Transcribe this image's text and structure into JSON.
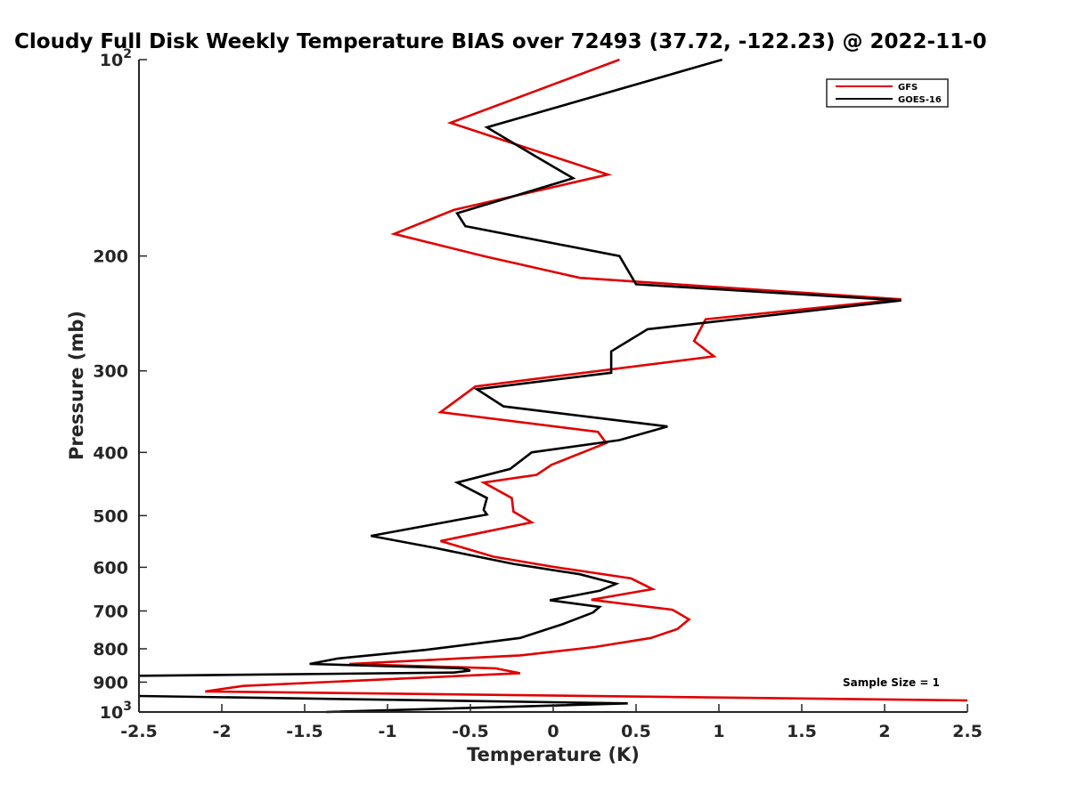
{
  "chart_data": {
    "type": "line",
    "title": "Cloudy Full Disk Weekly Temperature BIAS over 72493 (37.72, -122.23) @ 2022-11-0",
    "xlabel": "Temperature (K)",
    "ylabel": "Pressure (mb)",
    "xlim": [
      -2.5,
      2.5
    ],
    "ylim": [
      100,
      1000
    ],
    "y_scale": "log",
    "y_reversed": true,
    "x_ticks": [
      "-2.5",
      "-2",
      "-1.5",
      "-1",
      "-0.5",
      "0",
      "0.5",
      "1",
      "1.5",
      "2",
      "2.5"
    ],
    "y_ticks": [
      {
        "value": 100,
        "base": "10",
        "exp": "2"
      },
      {
        "value": 200,
        "label": "200"
      },
      {
        "value": 300,
        "label": "300"
      },
      {
        "value": 400,
        "label": "400"
      },
      {
        "value": 500,
        "label": "500"
      },
      {
        "value": 600,
        "label": "600"
      },
      {
        "value": 700,
        "label": "700"
      },
      {
        "value": 800,
        "label": "800"
      },
      {
        "value": 900,
        "label": "900"
      },
      {
        "value": 1000,
        "base": "10",
        "exp": "3"
      }
    ],
    "grid": false,
    "legend_position": "top-right",
    "annotation": "Sample Size = 1",
    "series": [
      {
        "name": "GFS",
        "color": "#e00000",
        "points": [
          [
            0.4,
            100
          ],
          [
            -0.62,
            125
          ],
          [
            0.33,
            150
          ],
          [
            -0.6,
            170
          ],
          [
            -0.96,
            185
          ],
          [
            -0.42,
            200
          ],
          [
            0.16,
            216
          ],
          [
            2.1,
            233
          ],
          [
            0.92,
            250
          ],
          [
            0.85,
            270
          ],
          [
            0.97,
            285
          ],
          [
            -0.47,
            317
          ],
          [
            -0.68,
            347
          ],
          [
            0.27,
            372
          ],
          [
            0.32,
            387
          ],
          [
            -0.01,
            418
          ],
          [
            -0.1,
            433
          ],
          [
            -0.42,
            445
          ],
          [
            -0.25,
            470
          ],
          [
            -0.24,
            493
          ],
          [
            -0.13,
            512
          ],
          [
            -0.68,
            547
          ],
          [
            -0.36,
            578
          ],
          [
            0.0,
            599
          ],
          [
            0.47,
            624
          ],
          [
            0.6,
            648
          ],
          [
            0.23,
            673
          ],
          [
            0.72,
            697
          ],
          [
            0.82,
            721
          ],
          [
            0.75,
            746
          ],
          [
            0.59,
            770
          ],
          [
            0.25,
            795
          ],
          [
            -0.2,
            819
          ],
          [
            -1.23,
            844
          ],
          [
            -0.35,
            857
          ],
          [
            -0.2,
            872
          ],
          [
            -0.97,
            890
          ],
          [
            -1.87,
            912
          ],
          [
            -2.1,
            930
          ],
          [
            2.5,
            960
          ]
        ]
      },
      {
        "name": "GOES-16",
        "color": "#000000",
        "points": [
          [
            1.02,
            100
          ],
          [
            -0.4,
            127
          ],
          [
            -0.12,
            140
          ],
          [
            0.12,
            152
          ],
          [
            -0.58,
            172
          ],
          [
            -0.53,
            180
          ],
          [
            0.4,
            200
          ],
          [
            0.5,
            221
          ],
          [
            2.1,
            234
          ],
          [
            0.57,
            259
          ],
          [
            0.35,
            280
          ],
          [
            0.35,
            302
          ],
          [
            -0.46,
            320
          ],
          [
            -0.3,
            340
          ],
          [
            0.69,
            365
          ],
          [
            0.4,
            383
          ],
          [
            -0.13,
            400
          ],
          [
            -0.26,
            424
          ],
          [
            -0.58,
            445
          ],
          [
            -0.4,
            470
          ],
          [
            -0.42,
            490
          ],
          [
            -0.4,
            498
          ],
          [
            -1.1,
            537
          ],
          [
            -0.72,
            560
          ],
          [
            -0.24,
            593
          ],
          [
            0.16,
            615
          ],
          [
            0.38,
            636
          ],
          [
            0.28,
            652
          ],
          [
            -0.02,
            674
          ],
          [
            0.28,
            690
          ],
          [
            0.24,
            704
          ],
          [
            0.06,
            733
          ],
          [
            -0.2,
            770
          ],
          [
            -0.77,
            803
          ],
          [
            -1.3,
            828
          ],
          [
            -1.47,
            844
          ],
          [
            -0.55,
            857
          ],
          [
            -0.5,
            864
          ],
          [
            -0.6,
            870
          ],
          [
            -2.5,
            880
          ]
        ]
      },
      {
        "name": "GOES-16",
        "color": "#000000",
        "points": [
          [
            -2.5,
            945
          ],
          [
            0.45,
            970
          ],
          [
            -1.37,
            1000
          ]
        ]
      }
    ]
  }
}
